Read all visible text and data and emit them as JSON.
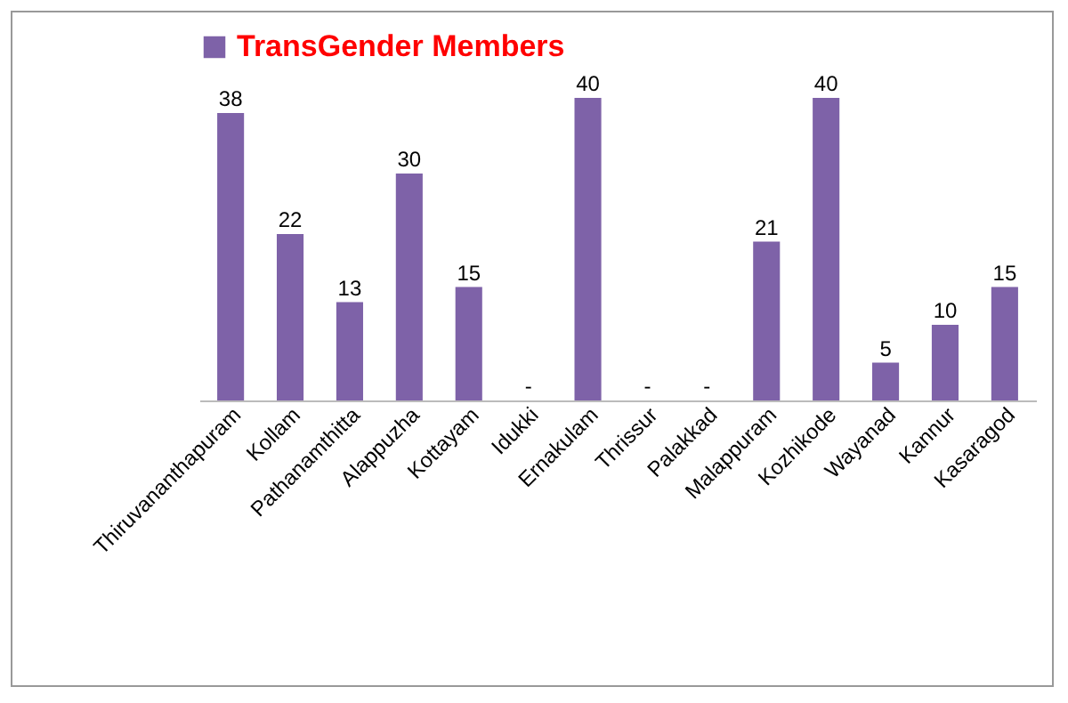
{
  "chart_data": {
    "type": "bar",
    "categories": [
      "Thiruvananthapuram",
      "Kollam",
      "Pathanamthitta",
      "Alappuzha",
      "Kottayam",
      "Idukki",
      "Ernakulam",
      "Thrissur",
      "Palakkad",
      "Malappuram",
      "Kozhikode",
      "Wayanad",
      "Kannur",
      "Kasaragod"
    ],
    "series": [
      {
        "name": "TransGender Members",
        "color": "#7e62a8",
        "values": [
          38,
          22,
          13,
          30,
          15,
          0,
          40,
          0,
          0,
          21,
          40,
          5,
          10,
          15
        ],
        "value_labels": [
          "38",
          "22",
          "13",
          "30",
          "15",
          "-",
          "40",
          "-",
          "-",
          "21",
          "40",
          "5",
          "10",
          "15"
        ]
      }
    ],
    "legend": "top",
    "grid": false
  }
}
